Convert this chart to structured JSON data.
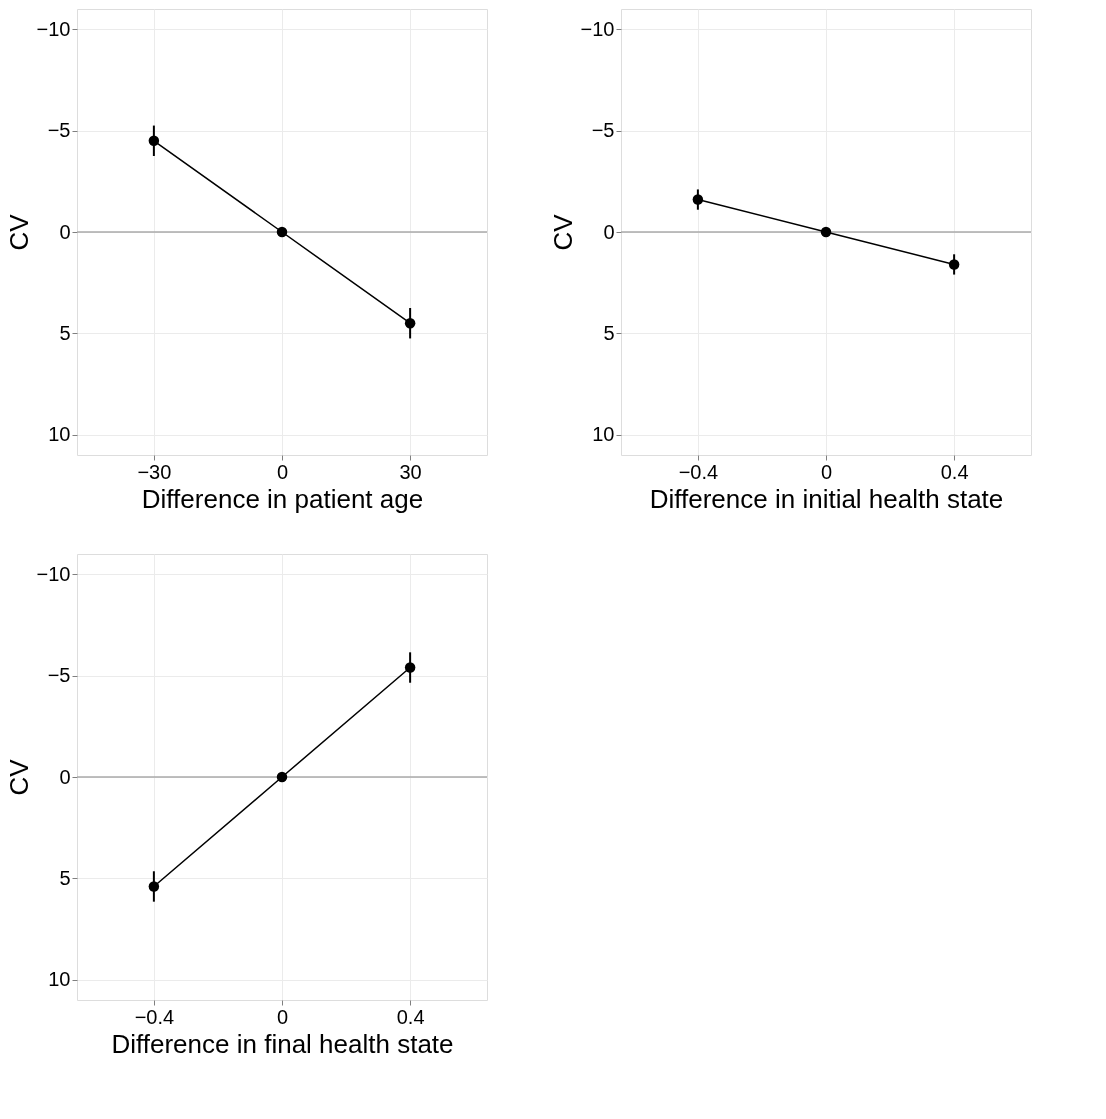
{
  "chart_data": [
    {
      "type": "line",
      "xlabel": "Difference in patient age",
      "ylabel": "CV",
      "x": [
        -30,
        0,
        30
      ],
      "series": [
        {
          "color": "#000000",
          "values": [
            -4.5,
            0,
            4.5
          ],
          "errors": [
            0.75,
            null,
            0.75
          ]
        }
      ],
      "xlim": [
        -48,
        48
      ],
      "xticks": [
        -30,
        0,
        30
      ],
      "ylim": [
        11,
        -11
      ],
      "yticks": [
        -10,
        -5,
        0,
        5,
        10
      ],
      "ref_lines": [
        {
          "axis": "y",
          "value": 0,
          "color": "#aaaaaa"
        }
      ],
      "grid": true,
      "marker": "circle",
      "line_style": "solid"
    },
    {
      "type": "line",
      "xlabel": "Difference in initial health state",
      "ylabel": "CV",
      "x": [
        -0.4,
        0,
        0.4
      ],
      "series": [
        {
          "color": "#000000",
          "values": [
            -1.6,
            0,
            1.6
          ],
          "errors": [
            0.5,
            null,
            0.5
          ]
        }
      ],
      "xlim": [
        -0.64,
        0.64
      ],
      "xticks": [
        -0.4,
        0,
        0.4
      ],
      "ylim": [
        11,
        -11
      ],
      "yticks": [
        -10,
        -5,
        0,
        5,
        10
      ],
      "ref_lines": [
        {
          "axis": "y",
          "value": 0,
          "color": "#aaaaaa"
        }
      ],
      "grid": true,
      "marker": "circle",
      "line_style": "solid"
    },
    {
      "type": "line",
      "xlabel": "Difference in final health state",
      "ylabel": "CV",
      "x": [
        -0.4,
        0,
        0.4
      ],
      "series": [
        {
          "color": "#000000",
          "values": [
            5.4,
            0,
            -5.4
          ],
          "errors": [
            0.75,
            null,
            0.75
          ]
        }
      ],
      "xlim": [
        -0.64,
        0.64
      ],
      "xticks": [
        -0.4,
        0,
        0.4
      ],
      "ylim": [
        11,
        -11
      ],
      "yticks": [
        -10,
        -5,
        0,
        5,
        10
      ],
      "ref_lines": [
        {
          "axis": "y",
          "value": 0,
          "color": "#aaaaaa"
        }
      ],
      "grid": true,
      "marker": "circle",
      "line_style": "solid"
    }
  ]
}
